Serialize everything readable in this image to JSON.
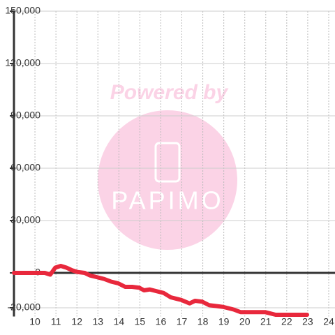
{
  "chart_data": {
    "type": "line",
    "watermark": {
      "title": "Powered by",
      "logo": "PAPIMO"
    },
    "x": [
      9,
      10.47,
      10.73,
      10.97,
      11.23,
      11.5,
      11.77,
      12.03,
      12.37,
      12.63,
      12.97,
      13.3,
      13.63,
      13.97,
      14.3,
      14.63,
      14.97,
      15.2,
      15.47,
      15.8,
      16.13,
      16.47,
      16.97,
      17.37,
      17.63,
      17.97,
      18.3,
      18.97,
      19.47,
      19.8,
      20.97,
      21.47,
      22.97
    ],
    "series": [
      {
        "color": "#e8283c",
        "values": [
          0,
          0,
          -1000,
          3000,
          4000,
          3000,
          1500,
          500,
          0,
          -1500,
          -2500,
          -3500,
          -5000,
          -6000,
          -8000,
          -8000,
          -8500,
          -10000,
          -9500,
          -10500,
          -11500,
          -14000,
          -15500,
          -17500,
          -16000,
          -16500,
          -18500,
          -19500,
          -21000,
          -22500,
          -22500,
          -24000,
          -24000
        ]
      }
    ],
    "xlim": [
      9,
      24.3
    ],
    "xticks": [
      10,
      11,
      12,
      13,
      14,
      15,
      16,
      17,
      18,
      19,
      20,
      21,
      22,
      23,
      24
    ],
    "ylim": [
      -25000,
      150000
    ],
    "yticks": [
      {
        "value": -20000,
        "label": "-20,000"
      },
      0,
      {
        "value": 30000,
        "label": "30,000"
      },
      {
        "value": 60000,
        "label": "60,000"
      },
      {
        "value": 90000,
        "label": "90,000"
      },
      {
        "value": 120000,
        "label": "120,000"
      },
      {
        "value": 150000,
        "label": "150,000"
      }
    ],
    "grid": true
  }
}
